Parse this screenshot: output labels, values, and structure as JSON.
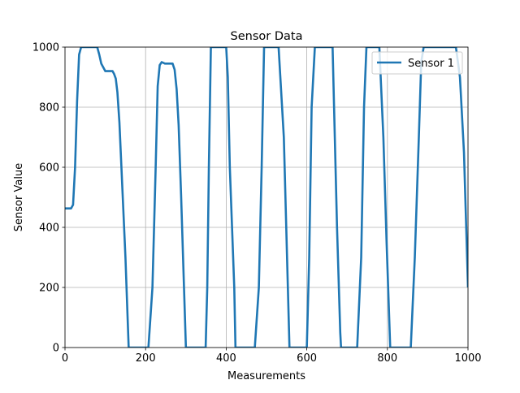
{
  "chart_data": {
    "type": "line",
    "title": "Sensor Data",
    "xlabel": "Measurements",
    "ylabel": "Sensor Value",
    "xlim": [
      0,
      1000
    ],
    "ylim": [
      0,
      1000
    ],
    "xticks": [
      0,
      200,
      400,
      600,
      800,
      1000
    ],
    "yticks": [
      0,
      200,
      400,
      600,
      800,
      1000
    ],
    "grid": true,
    "legend_position": "top-right",
    "series": [
      {
        "name": "Sensor 1",
        "color": "#1f77b4",
        "x": [
          0,
          15,
          20,
          25,
          30,
          35,
          40,
          80,
          85,
          90,
          100,
          118,
          122,
          126,
          130,
          135,
          140,
          150,
          158,
          207,
          217,
          225,
          230,
          235,
          240,
          248,
          267,
          272,
          277,
          282,
          288,
          300,
          349,
          353,
          357,
          362,
          370,
          400,
          404,
          409,
          420,
          423,
          427,
          471,
          481,
          488,
          494,
          500,
          530,
          543,
          553,
          557,
          600,
          606,
          612,
          620,
          650,
          664,
          675,
          683,
          685,
          725,
          735,
          742,
          748,
          760,
          780,
          790,
          798,
          807,
          811,
          858,
          868,
          878,
          884,
          890,
          950,
          970,
          980,
          990,
          1000
        ],
        "y": [
          463,
          463,
          475,
          600,
          820,
          975,
          1000,
          1000,
          975,
          945,
          920,
          920,
          910,
          895,
          850,
          750,
          600,
          300,
          0,
          0,
          200,
          600,
          870,
          940,
          950,
          945,
          945,
          925,
          860,
          740,
          510,
          0,
          0,
          200,
          600,
          1000,
          1000,
          1000,
          900,
          600,
          200,
          0,
          0,
          0,
          200,
          600,
          1000,
          1000,
          1000,
          700,
          200,
          0,
          0,
          300,
          800,
          1000,
          1000,
          1000,
          400,
          50,
          0,
          0,
          300,
          800,
          1000,
          1000,
          1000,
          700,
          350,
          0,
          0,
          0,
          300,
          700,
          950,
          1000,
          1000,
          1000,
          900,
          650,
          200
        ]
      }
    ]
  }
}
